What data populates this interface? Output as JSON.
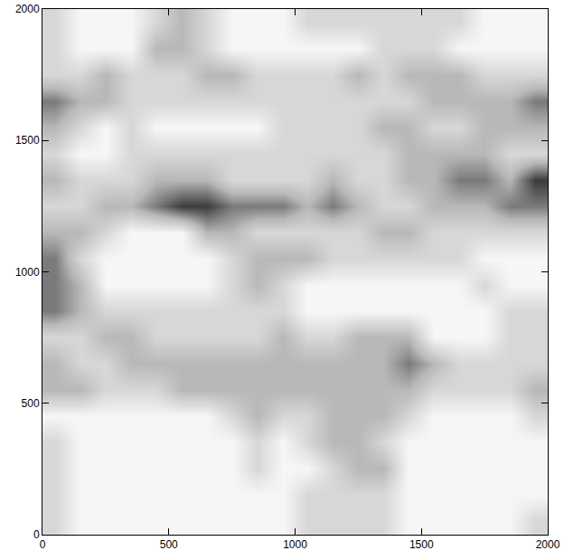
{
  "chart_data": {
    "type": "heatmap",
    "x": [
      50,
      150,
      250,
      350,
      450,
      550,
      650,
      750,
      850,
      950,
      1050,
      1150,
      1250,
      1350,
      1450,
      1550,
      1650,
      1750,
      1850,
      1950
    ],
    "y": [
      50,
      150,
      250,
      350,
      450,
      550,
      650,
      750,
      850,
      950,
      1050,
      1150,
      1250,
      1350,
      1450,
      1550,
      1650,
      1750,
      1850,
      1950
    ],
    "z": [
      [
        2,
        1,
        1,
        1,
        1,
        1,
        1,
        1,
        1,
        1,
        2,
        2,
        2,
        2,
        1,
        1,
        1,
        1,
        1,
        2
      ],
      [
        2,
        1,
        1,
        1,
        1,
        1,
        1,
        1,
        1,
        1,
        2,
        2,
        2,
        2,
        1,
        1,
        1,
        1,
        1,
        1
      ],
      [
        2,
        1,
        1,
        1,
        1,
        1,
        1,
        1,
        2,
        1,
        1,
        2,
        3,
        3,
        1,
        1,
        1,
        1,
        1,
        1
      ],
      [
        2,
        1,
        1,
        1,
        1,
        1,
        1,
        1,
        2,
        1,
        2,
        3,
        3,
        2,
        1,
        1,
        1,
        1,
        1,
        1
      ],
      [
        1,
        1,
        1,
        1,
        1,
        1,
        1,
        2,
        3,
        2,
        2,
        3,
        3,
        3,
        2,
        1,
        1,
        1,
        1,
        2
      ],
      [
        3,
        3,
        2,
        2,
        2,
        3,
        3,
        3,
        3,
        3,
        3,
        3,
        3,
        3,
        3,
        2,
        2,
        2,
        2,
        3
      ],
      [
        3,
        2,
        2,
        3,
        3,
        3,
        3,
        3,
        3,
        3,
        3,
        3,
        3,
        3,
        4,
        3,
        2,
        2,
        2,
        2
      ],
      [
        2,
        2,
        3,
        3,
        2,
        2,
        2,
        2,
        2,
        3,
        2,
        2,
        3,
        3,
        3,
        1,
        1,
        1,
        2,
        2
      ],
      [
        4,
        3,
        2,
        2,
        2,
        2,
        2,
        2,
        2,
        2,
        1,
        1,
        1,
        1,
        1,
        1,
        1,
        1,
        2,
        2
      ],
      [
        4,
        3,
        1,
        1,
        1,
        1,
        1,
        2,
        3,
        2,
        1,
        1,
        1,
        1,
        1,
        1,
        1,
        2,
        1,
        1
      ],
      [
        4,
        2,
        1,
        1,
        1,
        1,
        1,
        2,
        3,
        3,
        3,
        2,
        2,
        2,
        2,
        2,
        2,
        1,
        1,
        1
      ],
      [
        3,
        3,
        2,
        1,
        1,
        1,
        3,
        3,
        2,
        2,
        2,
        2,
        2,
        3,
        3,
        2,
        2,
        2,
        2,
        2
      ],
      [
        2,
        2,
        3,
        3,
        4,
        5,
        5,
        4,
        4,
        4,
        3,
        4,
        3,
        2,
        2,
        3,
        3,
        3,
        4,
        4
      ],
      [
        3,
        2,
        2,
        2,
        3,
        3,
        3,
        2,
        2,
        2,
        2,
        3,
        2,
        2,
        3,
        3,
        4,
        4,
        3,
        5
      ],
      [
        2,
        1,
        1,
        2,
        2,
        2,
        2,
        2,
        2,
        2,
        2,
        2,
        2,
        2,
        3,
        3,
        3,
        3,
        2,
        2
      ],
      [
        3,
        2,
        1,
        2,
        1,
        1,
        1,
        1,
        1,
        2,
        2,
        2,
        2,
        3,
        3,
        2,
        2,
        3,
        3,
        3
      ],
      [
        4,
        3,
        3,
        2,
        2,
        2,
        2,
        2,
        2,
        2,
        2,
        2,
        2,
        2,
        2,
        3,
        3,
        3,
        3,
        4
      ],
      [
        2,
        2,
        3,
        2,
        2,
        2,
        3,
        3,
        2,
        2,
        2,
        2,
        3,
        2,
        3,
        3,
        3,
        2,
        2,
        2
      ],
      [
        2,
        1,
        1,
        1,
        3,
        3,
        2,
        1,
        1,
        1,
        1,
        1,
        1,
        2,
        2,
        2,
        1,
        1,
        1,
        1
      ],
      [
        2,
        1,
        1,
        1,
        2,
        3,
        2,
        1,
        1,
        1,
        2,
        2,
        2,
        2,
        2,
        2,
        2,
        1,
        1,
        1
      ]
    ],
    "xlim": [
      0,
      2000
    ],
    "ylim": [
      0,
      2000
    ],
    "xticks": [
      0,
      500,
      1000,
      1500,
      2000
    ],
    "yticks": [
      0,
      500,
      1000,
      1500,
      2000
    ]
  }
}
